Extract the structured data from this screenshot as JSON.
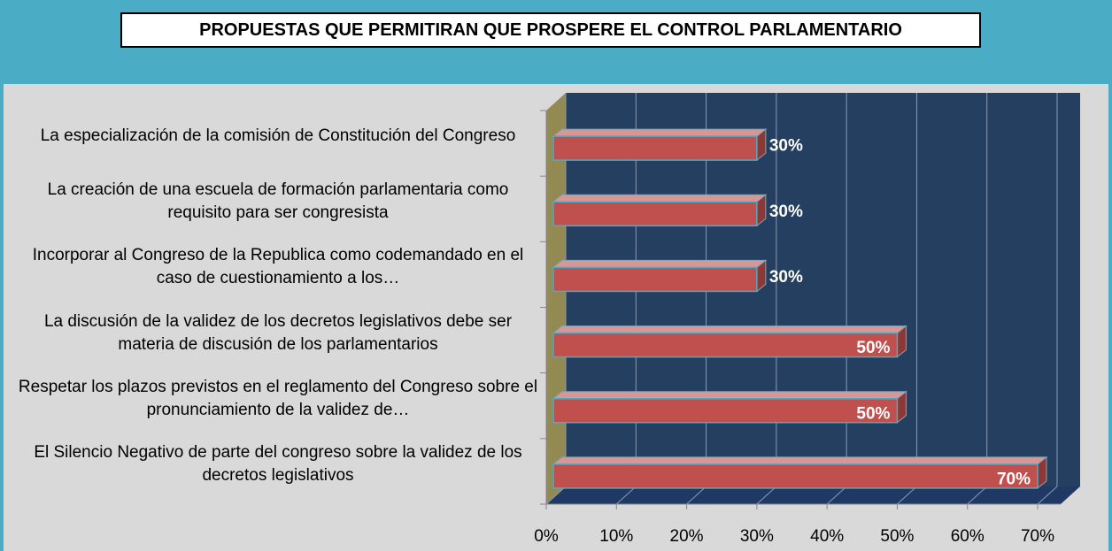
{
  "chart_data": {
    "type": "bar",
    "orientation": "horizontal",
    "title": "PROPUESTAS QUE PERMITIRAN QUE PROSPERE EL CONTROL PARLAMENTARIO",
    "categories": [
      "La especialización de la comisión de Constitución del Congreso",
      "La creación de una escuela de formación parlamentaria como requisito para ser congresista",
      "Incorporar al Congreso de la Republica como codemandado en el caso de cuestionamiento a los…",
      "La discusión de la validez de los decretos legislativos debe ser materia de discusión de los parlamentarios",
      "Respetar los plazos previstos en el reglamento del Congreso sobre el pronunciamiento de la validez de…",
      "El Silencio Negativo de parte del congreso sobre la validez de los decretos legislativos"
    ],
    "values": [
      30,
      30,
      30,
      50,
      50,
      70
    ],
    "value_labels": [
      "30%",
      "30%",
      "30%",
      "50%",
      "50%",
      "70%"
    ],
    "color": "#c0504d",
    "xlim": [
      0,
      70
    ],
    "xticks": [
      {
        "value": 0,
        "label": "0%"
      },
      {
        "value": 10,
        "label": "10%"
      },
      {
        "value": 20,
        "label": "20%"
      },
      {
        "value": 30,
        "label": "30%"
      },
      {
        "value": 40,
        "label": "40%"
      },
      {
        "value": 50,
        "label": "50%"
      },
      {
        "value": 60,
        "label": "60%"
      },
      {
        "value": 70,
        "label": "70%"
      }
    ],
    "grid": true
  }
}
